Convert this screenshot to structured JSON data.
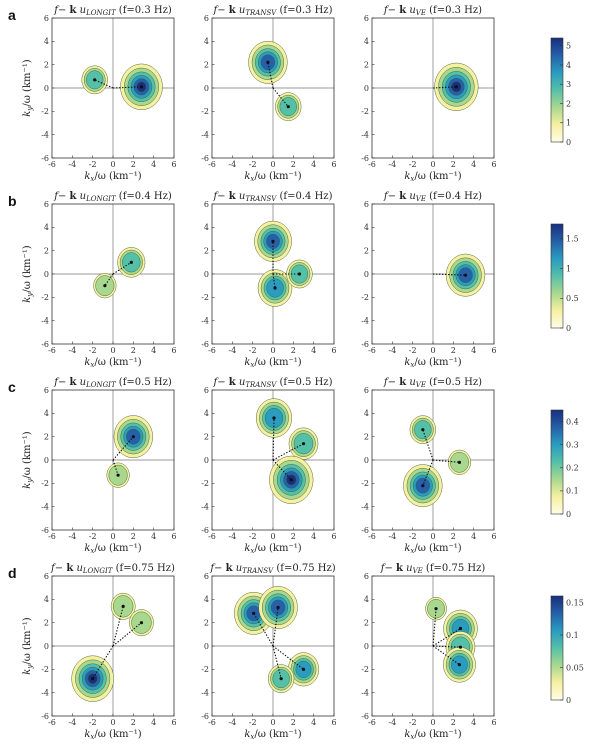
{
  "figure": {
    "row_labels": [
      "a",
      "b",
      "c",
      "d"
    ]
  },
  "chart_data": [
    {
      "type": "contour",
      "row": 0,
      "col": 0,
      "title": "f−k u_LONGIT (f=0.3 Hz)",
      "xlabel": "kx/ω (km⁻¹)",
      "ylabel": "ky/ω (km⁻¹)",
      "xlim": [
        -6,
        6
      ],
      "ylim": [
        -6,
        6
      ],
      "xticks": [
        -6,
        -4,
        -2,
        0,
        2,
        4,
        6
      ],
      "yticks": [
        -6,
        -4,
        -2,
        0,
        2,
        4,
        6
      ],
      "peaks": [
        {
          "x": 2.8,
          "y": 0.1,
          "level": 0.95
        },
        {
          "x": -1.8,
          "y": 0.7,
          "level": 0.45
        }
      ]
    },
    {
      "type": "contour",
      "row": 0,
      "col": 1,
      "title": "f−k u_TRANSV (f=0.3 Hz)",
      "xlabel": "kx/ω (km⁻¹)",
      "ylabel": "",
      "xlim": [
        -6,
        6
      ],
      "ylim": [
        -6,
        6
      ],
      "xticks": [
        -6,
        -4,
        -2,
        0,
        2,
        4,
        6
      ],
      "yticks": [
        -6,
        -4,
        -2,
        0,
        2,
        4,
        6
      ],
      "peaks": [
        {
          "x": -0.5,
          "y": 2.2,
          "level": 0.85
        },
        {
          "x": 1.5,
          "y": -1.6,
          "level": 0.45
        }
      ]
    },
    {
      "type": "contour",
      "row": 0,
      "col": 2,
      "title": "f−k u_VE (f=0.3 Hz)",
      "xlabel": "kx/ω (km⁻¹)",
      "ylabel": "",
      "xlim": [
        -6,
        6
      ],
      "ylim": [
        -6,
        6
      ],
      "xticks": [
        -6,
        -4,
        -2,
        0,
        2,
        4,
        6
      ],
      "yticks": [
        -6,
        -4,
        -2,
        0,
        2,
        4,
        6
      ],
      "peaks": [
        {
          "x": 2.3,
          "y": 0.1,
          "level": 1.0
        }
      ]
    },
    {
      "type": "contour",
      "row": 1,
      "col": 0,
      "title": "f−k u_LONGIT (f=0.4 Hz)",
      "xlabel": "kx/ω (km⁻¹)",
      "ylabel": "ky/ω (km⁻¹)",
      "xlim": [
        -6,
        6
      ],
      "ylim": [
        -6,
        6
      ],
      "xticks": [
        -6,
        -4,
        -2,
        0,
        2,
        4,
        6
      ],
      "yticks": [
        -6,
        -4,
        -2,
        0,
        2,
        4,
        6
      ],
      "peaks": [
        {
          "x": 1.8,
          "y": 1.0,
          "level": 0.5
        },
        {
          "x": -0.8,
          "y": -1.0,
          "level": 0.35
        }
      ]
    },
    {
      "type": "contour",
      "row": 1,
      "col": 1,
      "title": "f−k u_TRANSV (f=0.4 Hz)",
      "xlabel": "kx/ω (km⁻¹)",
      "ylabel": "",
      "xlim": [
        -6,
        6
      ],
      "ylim": [
        -6,
        6
      ],
      "xticks": [
        -6,
        -4,
        -2,
        0,
        2,
        4,
        6
      ],
      "yticks": [
        -6,
        -4,
        -2,
        0,
        2,
        4,
        6
      ],
      "peaks": [
        {
          "x": 0.0,
          "y": 2.8,
          "level": 0.8
        },
        {
          "x": 0.2,
          "y": -1.2,
          "level": 0.7
        },
        {
          "x": 2.6,
          "y": 0.0,
          "level": 0.45
        }
      ]
    },
    {
      "type": "contour",
      "row": 1,
      "col": 2,
      "title": "f−k u_VE (f=0.4 Hz)",
      "xlabel": "kx/ω (km⁻¹)",
      "ylabel": "",
      "xlim": [
        -6,
        6
      ],
      "ylim": [
        -6,
        6
      ],
      "xticks": [
        -6,
        -4,
        -2,
        0,
        2,
        4,
        6
      ],
      "yticks": [
        -6,
        -4,
        -2,
        0,
        2,
        4,
        6
      ],
      "peaks": [
        {
          "x": 3.2,
          "y": -0.1,
          "level": 0.85
        }
      ]
    },
    {
      "type": "contour",
      "row": 2,
      "col": 0,
      "title": "f−k u_LONGIT (f=0.5 Hz)",
      "xlabel": "kx/ω (km⁻¹)",
      "ylabel": "ky/ω (km⁻¹)",
      "xlim": [
        -6,
        6
      ],
      "ylim": [
        -6,
        6
      ],
      "xticks": [
        -6,
        -4,
        -2,
        0,
        2,
        4,
        6
      ],
      "yticks": [
        -6,
        -4,
        -2,
        0,
        2,
        4,
        6
      ],
      "peaks": [
        {
          "x": 2.0,
          "y": 2.0,
          "level": 0.85
        },
        {
          "x": 0.5,
          "y": -1.3,
          "level": 0.35
        }
      ]
    },
    {
      "type": "contour",
      "row": 2,
      "col": 1,
      "title": "f−k u_TRANSV (f=0.5 Hz)",
      "xlabel": "kx/ω (km⁻¹)",
      "ylabel": "",
      "xlim": [
        -6,
        6
      ],
      "ylim": [
        -6,
        6
      ],
      "xticks": [
        -6,
        -4,
        -2,
        0,
        2,
        4,
        6
      ],
      "yticks": [
        -6,
        -4,
        -2,
        0,
        2,
        4,
        6
      ],
      "peaks": [
        {
          "x": 0.1,
          "y": 3.6,
          "level": 0.75
        },
        {
          "x": 3.0,
          "y": 1.4,
          "level": 0.55
        },
        {
          "x": 1.8,
          "y": -1.7,
          "level": 1.0
        }
      ]
    },
    {
      "type": "contour",
      "row": 2,
      "col": 2,
      "title": "f−k u_VE (f=0.5 Hz)",
      "xlabel": "kx/ω (km⁻¹)",
      "ylabel": "",
      "xlim": [
        -6,
        6
      ],
      "ylim": [
        -6,
        6
      ],
      "xticks": [
        -6,
        -4,
        -2,
        0,
        2,
        4,
        6
      ],
      "yticks": [
        -6,
        -4,
        -2,
        0,
        2,
        4,
        6
      ],
      "peaks": [
        {
          "x": -1.0,
          "y": -2.2,
          "level": 0.85
        },
        {
          "x": -1.0,
          "y": 2.6,
          "level": 0.45
        },
        {
          "x": 2.6,
          "y": -0.2,
          "level": 0.35
        }
      ]
    },
    {
      "type": "contour",
      "row": 3,
      "col": 0,
      "title": "f−k u_LONGIT (f=0.75 Hz)",
      "xlabel": "kx/ω (km⁻¹)",
      "ylabel": "ky/ω (km⁻¹)",
      "xlim": [
        -6,
        6
      ],
      "ylim": [
        -6,
        6
      ],
      "xticks": [
        -6,
        -4,
        -2,
        0,
        2,
        4,
        6
      ],
      "yticks": [
        -6,
        -4,
        -2,
        0,
        2,
        4,
        6
      ],
      "peaks": [
        {
          "x": -2.0,
          "y": -2.8,
          "level": 0.95
        },
        {
          "x": 1.0,
          "y": 3.4,
          "level": 0.4
        },
        {
          "x": 2.8,
          "y": 2.0,
          "level": 0.4
        }
      ]
    },
    {
      "type": "contour",
      "row": 3,
      "col": 1,
      "title": "f−k u_TRANSV (f=0.75 Hz)",
      "xlabel": "kx/ω (km⁻¹)",
      "ylabel": "",
      "xlim": [
        -6,
        6
      ],
      "ylim": [
        -6,
        6
      ],
      "xticks": [
        -6,
        -4,
        -2,
        0,
        2,
        4,
        6
      ],
      "yticks": [
        -6,
        -4,
        -2,
        0,
        2,
        4,
        6
      ],
      "peaks": [
        {
          "x": -1.9,
          "y": 2.8,
          "level": 0.85
        },
        {
          "x": 0.5,
          "y": 3.3,
          "level": 0.85
        },
        {
          "x": 3.0,
          "y": -2.0,
          "level": 0.6
        },
        {
          "x": 0.8,
          "y": -2.8,
          "level": 0.45
        }
      ]
    },
    {
      "type": "contour",
      "row": 3,
      "col": 2,
      "title": "f−k u_VE (f=0.75 Hz)",
      "xlabel": "kx/ω (km⁻¹)",
      "ylabel": "",
      "xlim": [
        -6,
        6
      ],
      "ylim": [
        -6,
        6
      ],
      "xticks": [
        -6,
        -4,
        -2,
        0,
        2,
        4,
        6
      ],
      "yticks": [
        -6,
        -4,
        -2,
        0,
        2,
        4,
        6
      ],
      "peaks": [
        {
          "x": 2.7,
          "y": 1.5,
          "level": 0.7
        },
        {
          "x": 2.7,
          "y": -0.1,
          "level": 0.55
        },
        {
          "x": 2.6,
          "y": -1.6,
          "level": 0.65
        },
        {
          "x": 0.3,
          "y": 3.2,
          "level": 0.3
        }
      ]
    }
  ],
  "colorbars": [
    {
      "row": 0,
      "range": [
        0,
        5.4
      ],
      "ticks": [
        {
          "value": 0,
          "label": "0"
        },
        {
          "value": 1,
          "label": "1"
        },
        {
          "value": 2,
          "label": "2"
        },
        {
          "value": 3,
          "label": "3"
        },
        {
          "value": 4,
          "label": "4"
        },
        {
          "value": 5,
          "label": "5"
        }
      ]
    },
    {
      "row": 1,
      "range": [
        0,
        1.75
      ],
      "ticks": [
        {
          "value": 0,
          "label": "0"
        },
        {
          "value": 0.5,
          "label": "0.5"
        },
        {
          "value": 1,
          "label": "1"
        },
        {
          "value": 1.5,
          "label": "1.5"
        }
      ]
    },
    {
      "row": 2,
      "range": [
        0,
        0.45
      ],
      "ticks": [
        {
          "value": 0,
          "label": "0"
        },
        {
          "value": 0.1,
          "label": "0.1"
        },
        {
          "value": 0.2,
          "label": "0.2"
        },
        {
          "value": 0.3,
          "label": "0.3"
        },
        {
          "value": 0.4,
          "label": "0.4"
        }
      ]
    },
    {
      "row": 3,
      "range": [
        0,
        0.16
      ],
      "ticks": [
        {
          "value": 0,
          "label": "0"
        },
        {
          "value": 0.05,
          "label": "0.05"
        },
        {
          "value": 0.1,
          "label": "0.1"
        },
        {
          "value": 0.15,
          "label": "0.15"
        }
      ]
    }
  ],
  "colors": {
    "levels": [
      "#f6f0a0",
      "#a8d890",
      "#55c0a8",
      "#2a9cc0",
      "#2560a8",
      "#182f7e"
    ]
  }
}
